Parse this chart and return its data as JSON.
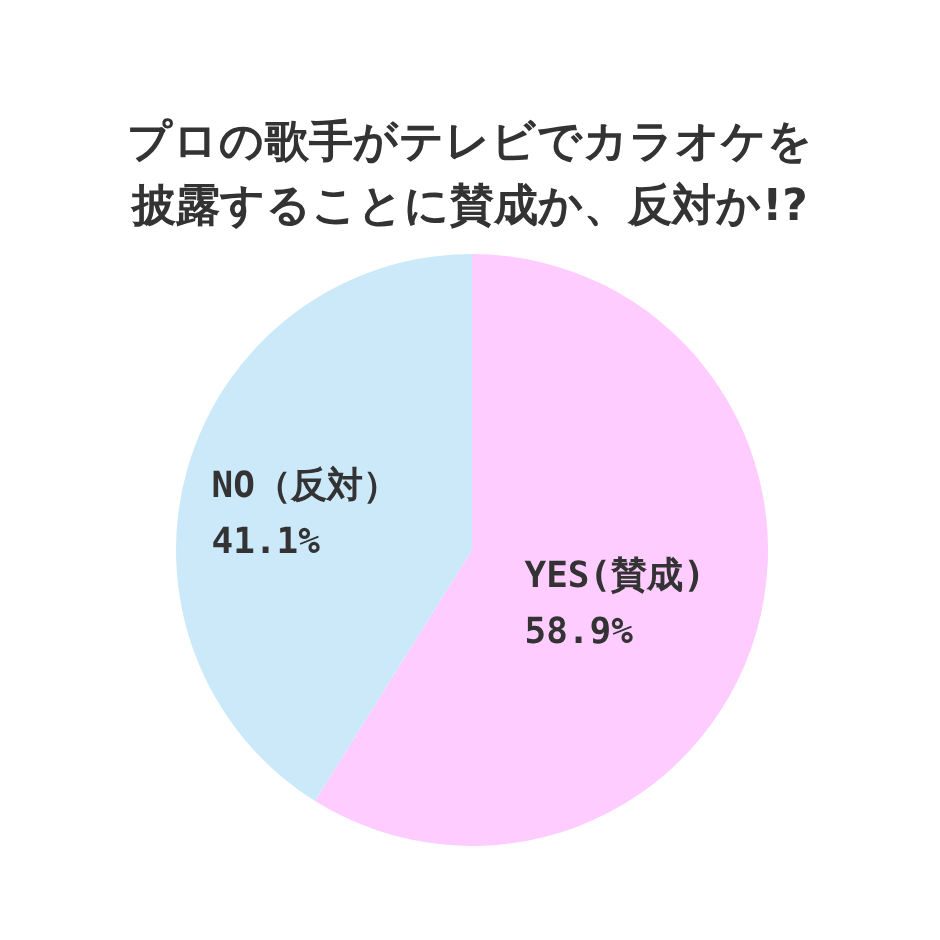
{
  "chart_data": {
    "type": "pie",
    "title": "プロの歌手がテレビでカラオケを披露することに賛成か、反対か!?",
    "categories": [
      "YES(賛成)",
      "NO（反対）"
    ],
    "values": [
      58.9,
      41.1
    ],
    "value_labels": [
      "58.9%",
      "41.1%"
    ],
    "colors": [
      "#ffccff",
      "#cce9fa"
    ]
  }
}
